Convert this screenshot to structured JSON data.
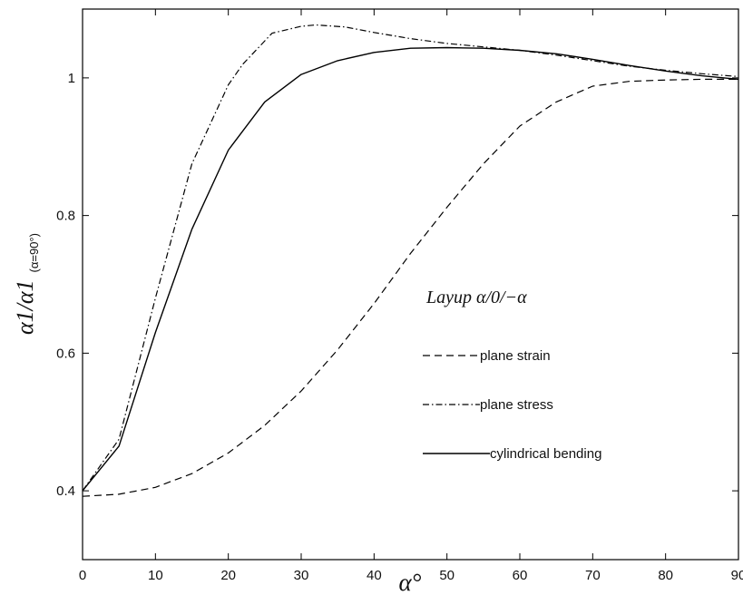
{
  "chart_data": {
    "type": "line",
    "xlabel": "α°",
    "ylabel": {
      "main": "α1/α1",
      "subscript": "(α=90°)"
    },
    "xlim": [
      0,
      90
    ],
    "ylim": [
      0.3,
      1.1
    ],
    "xticks": [
      0,
      10,
      20,
      30,
      40,
      50,
      60,
      70,
      80,
      90
    ],
    "yticks": [
      0.4,
      0.6,
      0.8,
      1
    ],
    "xtick_labels": [
      "0",
      "10",
      "20",
      "30",
      "40",
      "50",
      "60",
      "70",
      "80",
      "90"
    ],
    "ytick_labels": [
      "0.4",
      "0.6",
      "0.8",
      "1"
    ],
    "grid": false,
    "legend_title": "Layup α/0/−α",
    "legend_placement": "center-right",
    "series": [
      {
        "name": "plane strain",
        "style": "dashed",
        "x": [
          0,
          5,
          10,
          15,
          20,
          25,
          30,
          35,
          40,
          45,
          50,
          55,
          60,
          65,
          70,
          75,
          80,
          85,
          90
        ],
        "y": [
          0.392,
          0.395,
          0.405,
          0.425,
          0.455,
          0.495,
          0.545,
          0.605,
          0.672,
          0.745,
          0.812,
          0.875,
          0.93,
          0.965,
          0.988,
          0.995,
          0.997,
          0.998,
          0.998
        ]
      },
      {
        "name": "plane stress",
        "style": "dashdot",
        "x": [
          0,
          5,
          10,
          15,
          20,
          22,
          26,
          30,
          32,
          36,
          40,
          45,
          50,
          55,
          60,
          65,
          70,
          75,
          80,
          85,
          90
        ],
        "y": [
          0.4,
          0.475,
          0.68,
          0.875,
          0.99,
          1.02,
          1.065,
          1.075,
          1.077,
          1.074,
          1.066,
          1.057,
          1.05,
          1.045,
          1.04,
          1.033,
          1.025,
          1.017,
          1.011,
          1.006,
          1.002
        ]
      },
      {
        "name": "cylindrical bending",
        "style": "solid",
        "x": [
          0,
          5,
          10,
          15,
          20,
          25,
          30,
          35,
          40,
          45,
          50,
          55,
          60,
          65,
          70,
          75,
          80,
          85,
          90
        ],
        "y": [
          0.4,
          0.465,
          0.63,
          0.78,
          0.895,
          0.965,
          1.005,
          1.025,
          1.037,
          1.043,
          1.044,
          1.043,
          1.04,
          1.035,
          1.027,
          1.018,
          1.01,
          1.003,
          0.998
        ]
      }
    ]
  }
}
